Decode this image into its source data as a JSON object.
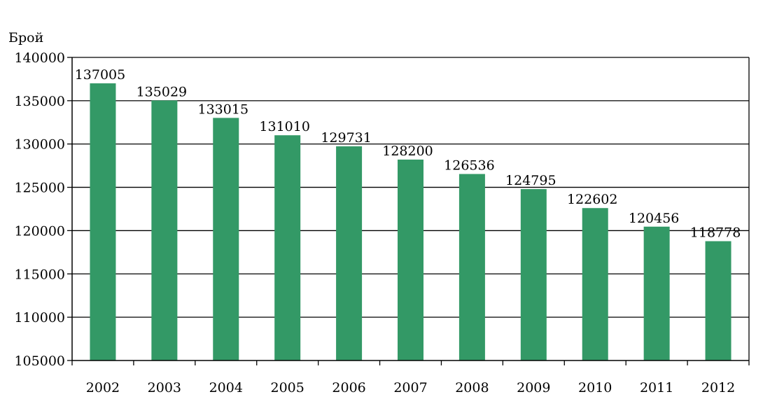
{
  "chart_data": {
    "type": "bar",
    "ylabel": "Брой",
    "categories": [
      "2002",
      "2003",
      "2004",
      "2005",
      "2006",
      "2007",
      "2008",
      "2009",
      "2010",
      "2011",
      "2012"
    ],
    "values": [
      137005,
      135029,
      133015,
      131010,
      129731,
      128200,
      126536,
      124795,
      122602,
      120456,
      118778
    ],
    "data_labels": [
      "137005",
      "135029",
      "133015",
      "131010",
      "129731",
      "128200",
      "126536",
      "124795",
      "122602",
      "120456",
      "118778"
    ],
    "ylim": [
      105000,
      140000
    ],
    "yticks": [
      105000,
      110000,
      115000,
      120000,
      125000,
      130000,
      135000,
      140000
    ],
    "ytick_labels": [
      "105000",
      "110000",
      "115000",
      "120000",
      "125000",
      "130000",
      "135000",
      "140000"
    ],
    "bar_color": "#339966",
    "grid": true,
    "legend": "none"
  }
}
